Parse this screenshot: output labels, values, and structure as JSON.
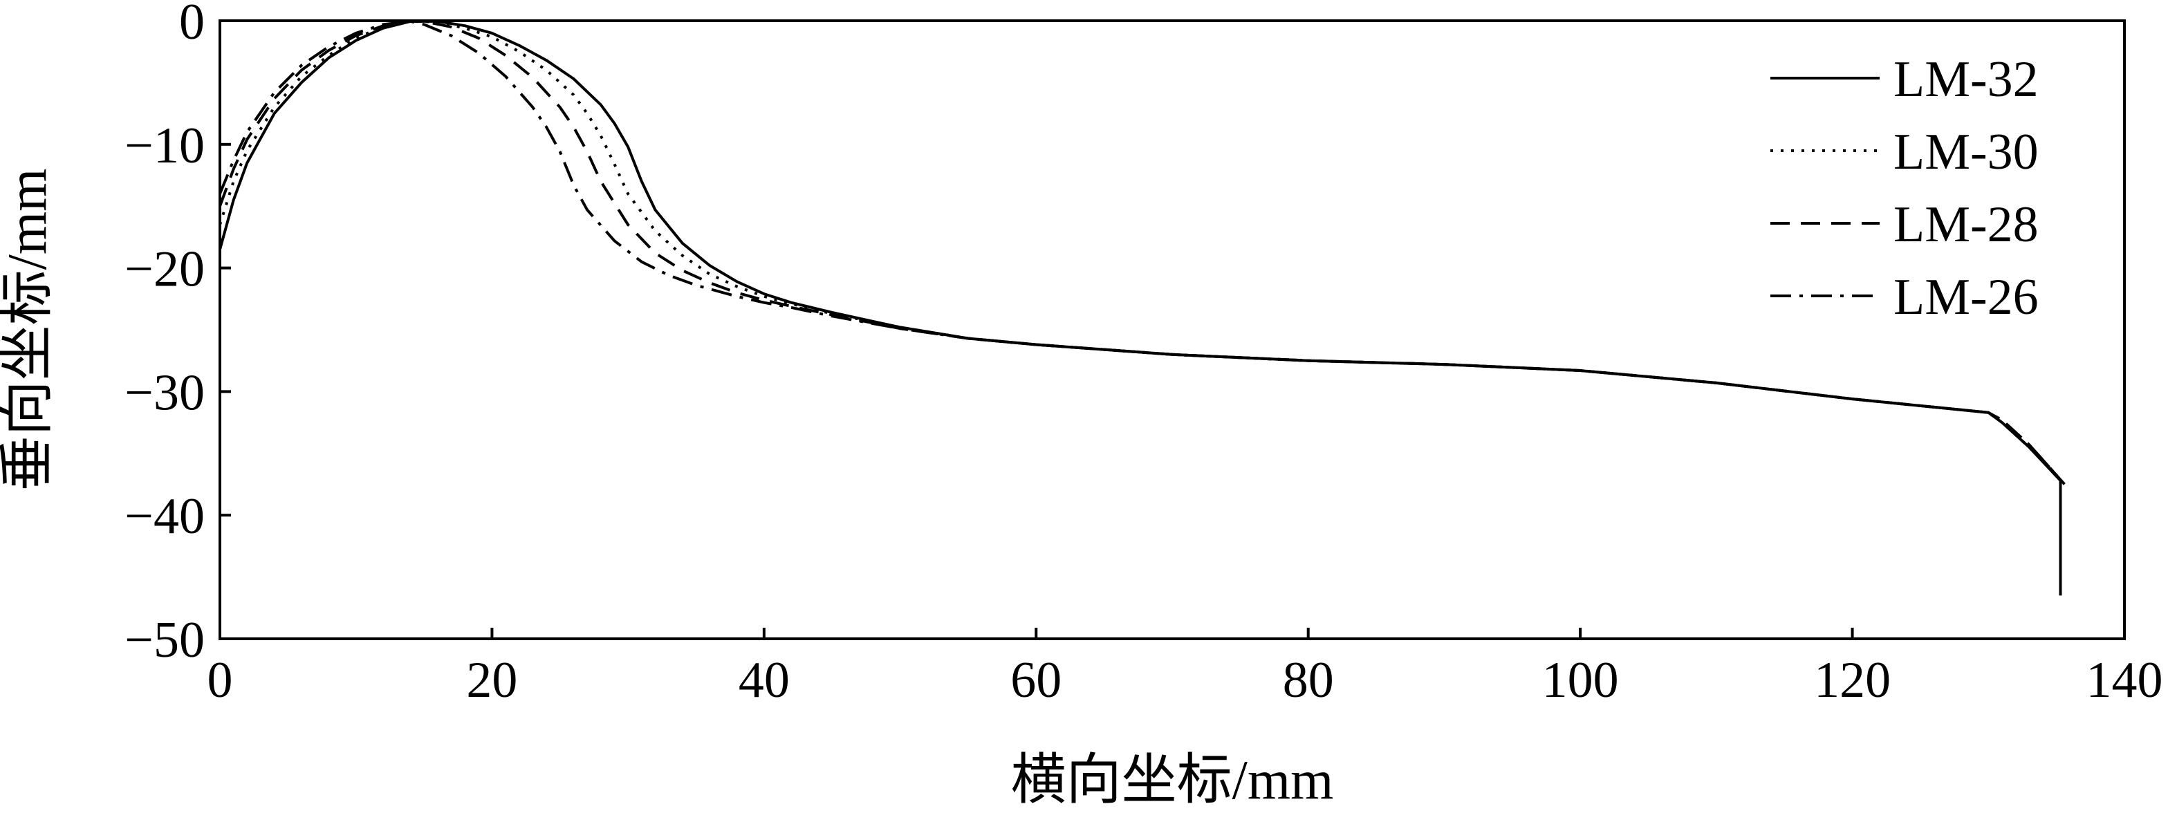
{
  "chart_data": {
    "type": "line",
    "title": "",
    "xlabel": "横向坐标/mm",
    "ylabel": "垂向坐标/mm",
    "xlim": [
      0,
      140
    ],
    "ylim": [
      -50,
      0
    ],
    "xticks": [
      "0",
      "20",
      "40",
      "60",
      "80",
      "100",
      "120",
      "140"
    ],
    "yticks": [
      "0",
      "−10",
      "−20",
      "−30",
      "−40",
      "−50"
    ],
    "grid": false,
    "legend_position": "top-right",
    "series": [
      {
        "name": "LM-32",
        "dash": "solid",
        "color": "#000000",
        "points": [
          [
            0,
            -18.5
          ],
          [
            1,
            -14.5
          ],
          [
            2,
            -11.5
          ],
          [
            4,
            -7.5
          ],
          [
            6,
            -5
          ],
          [
            8,
            -3
          ],
          [
            10,
            -1.6
          ],
          [
            12,
            -0.6
          ],
          [
            14,
            -0.05
          ],
          [
            16,
            -0.05
          ],
          [
            18,
            -0.4
          ],
          [
            20,
            -1
          ],
          [
            22,
            -2
          ],
          [
            24,
            -3.2
          ],
          [
            26,
            -4.7
          ],
          [
            28,
            -6.8
          ],
          [
            29,
            -8.3
          ],
          [
            30,
            -10.2
          ],
          [
            31,
            -13
          ],
          [
            32,
            -15.3
          ],
          [
            34,
            -18
          ],
          [
            36,
            -19.8
          ],
          [
            38,
            -21.1
          ],
          [
            40,
            -22.1
          ],
          [
            42,
            -22.8
          ],
          [
            45,
            -23.6
          ],
          [
            50,
            -24.8
          ],
          [
            55,
            -25.7
          ],
          [
            60,
            -26.2
          ],
          [
            70,
            -27
          ],
          [
            80,
            -27.5
          ],
          [
            90,
            -27.8
          ],
          [
            100,
            -28.3
          ],
          [
            110,
            -29.3
          ],
          [
            120,
            -30.6
          ],
          [
            130,
            -31.7
          ],
          [
            131,
            -32.5
          ],
          [
            133,
            -34.5
          ],
          [
            135.3,
            -37.2
          ],
          [
            135.3,
            -46.5
          ]
        ]
      },
      {
        "name": "LM-30",
        "dash": "dotted",
        "color": "#000000",
        "points": [
          [
            0,
            -16.5
          ],
          [
            1,
            -13
          ],
          [
            2,
            -10.5
          ],
          [
            4,
            -7
          ],
          [
            6,
            -4.5
          ],
          [
            8,
            -2.8
          ],
          [
            10,
            -1.4
          ],
          [
            12,
            -0.5
          ],
          [
            14,
            -0.05
          ],
          [
            16,
            -0.1
          ],
          [
            18,
            -0.6
          ],
          [
            20,
            -1.3
          ],
          [
            22,
            -2.5
          ],
          [
            24,
            -4
          ],
          [
            26,
            -6
          ],
          [
            27,
            -7.5
          ],
          [
            28,
            -9.3
          ],
          [
            29,
            -11.6
          ],
          [
            30,
            -14
          ],
          [
            32,
            -17
          ],
          [
            34,
            -19
          ],
          [
            36,
            -20.5
          ],
          [
            38,
            -21.5
          ],
          [
            40,
            -22.3
          ],
          [
            42,
            -22.9
          ],
          [
            45,
            -23.7
          ],
          [
            50,
            -24.8
          ],
          [
            55,
            -25.7
          ],
          [
            60,
            -26.2
          ],
          [
            70,
            -27
          ],
          [
            80,
            -27.5
          ],
          [
            90,
            -27.8
          ],
          [
            100,
            -28.3
          ],
          [
            110,
            -29.3
          ],
          [
            120,
            -30.6
          ],
          [
            130,
            -31.7
          ],
          [
            131,
            -32.5
          ],
          [
            133,
            -34.5
          ],
          [
            135.5,
            -37.4
          ]
        ]
      },
      {
        "name": "LM-28",
        "dash": "dashed",
        "color": "#000000",
        "points": [
          [
            0,
            -15
          ],
          [
            1,
            -12
          ],
          [
            2,
            -9.6
          ],
          [
            4,
            -6.3
          ],
          [
            6,
            -4
          ],
          [
            8,
            -2.4
          ],
          [
            10,
            -1.2
          ],
          [
            12,
            -0.4
          ],
          [
            14,
            -0.05
          ],
          [
            15,
            -0.05
          ],
          [
            17,
            -0.5
          ],
          [
            19,
            -1.4
          ],
          [
            21,
            -2.8
          ],
          [
            23,
            -4.6
          ],
          [
            25,
            -7
          ],
          [
            26,
            -8.6
          ],
          [
            27,
            -10.6
          ],
          [
            28,
            -13
          ],
          [
            30,
            -16.5
          ],
          [
            32,
            -18.8
          ],
          [
            34,
            -20.2
          ],
          [
            36,
            -21.2
          ],
          [
            38,
            -22
          ],
          [
            40,
            -22.6
          ],
          [
            42,
            -23.1
          ],
          [
            45,
            -23.8
          ],
          [
            50,
            -24.9
          ],
          [
            55,
            -25.7
          ],
          [
            60,
            -26.2
          ],
          [
            70,
            -27
          ],
          [
            80,
            -27.5
          ],
          [
            90,
            -27.8
          ],
          [
            100,
            -28.3
          ],
          [
            110,
            -29.3
          ],
          [
            120,
            -30.6
          ],
          [
            130,
            -31.7
          ],
          [
            131,
            -32.3
          ],
          [
            133,
            -34.3
          ],
          [
            135.6,
            -37.5
          ]
        ]
      },
      {
        "name": "LM-26",
        "dash": "dashdot",
        "color": "#000000",
        "points": [
          [
            0,
            -14
          ],
          [
            1,
            -11.3
          ],
          [
            2,
            -9
          ],
          [
            4,
            -5.8
          ],
          [
            6,
            -3.6
          ],
          [
            8,
            -2.1
          ],
          [
            10,
            -1
          ],
          [
            12,
            -0.3
          ],
          [
            14,
            -0.05
          ],
          [
            15,
            -0.3
          ],
          [
            17,
            -1.2
          ],
          [
            19,
            -2.6
          ],
          [
            21,
            -4.5
          ],
          [
            23,
            -7
          ],
          [
            24,
            -8.6
          ],
          [
            25,
            -10.6
          ],
          [
            26,
            -13.3
          ],
          [
            27,
            -15.3
          ],
          [
            29,
            -17.8
          ],
          [
            31,
            -19.5
          ],
          [
            33,
            -20.6
          ],
          [
            35,
            -21.4
          ],
          [
            38,
            -22.3
          ],
          [
            40,
            -22.8
          ],
          [
            42,
            -23.2
          ],
          [
            45,
            -23.9
          ],
          [
            50,
            -24.9
          ],
          [
            55,
            -25.7
          ],
          [
            60,
            -26.2
          ],
          [
            70,
            -27
          ],
          [
            80,
            -27.5
          ],
          [
            90,
            -27.8
          ],
          [
            100,
            -28.3
          ],
          [
            110,
            -29.3
          ],
          [
            120,
            -30.6
          ],
          [
            130,
            -31.7
          ],
          [
            131,
            -32.3
          ],
          [
            133,
            -34.3
          ],
          [
            135.6,
            -37.5
          ]
        ]
      }
    ]
  }
}
